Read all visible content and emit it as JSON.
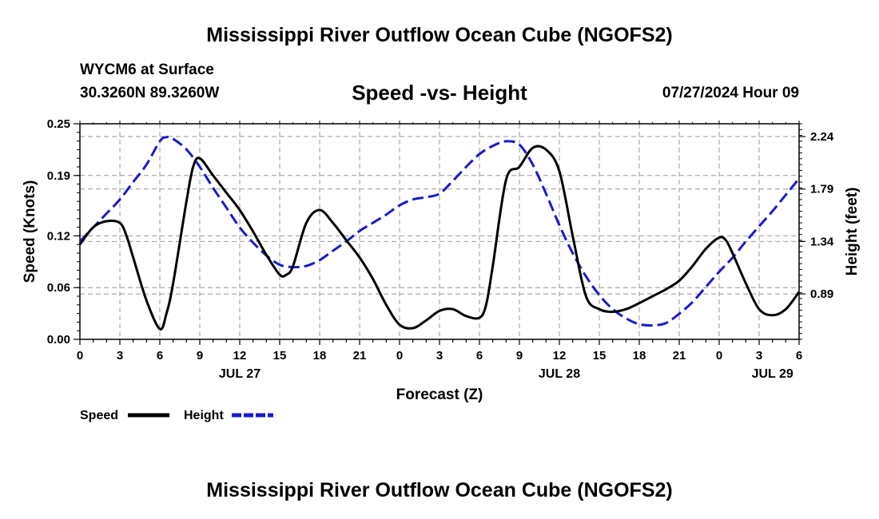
{
  "header": {
    "title": "Mississippi River Outflow Ocean Cube (NGOFS2)",
    "station": "WYCM6 at Surface",
    "coords": "30.3260N  89.3260W",
    "subtitle": "Speed -vs- Height",
    "datetime": "07/27/2024 Hour 09"
  },
  "footer": {
    "title": "Mississippi River Outflow Ocean Cube (NGOFS2)"
  },
  "chart_data": {
    "type": "line",
    "title": "Speed -vs- Height",
    "xlabel": "Forecast (Z)",
    "ylabel": "Speed (Knots)",
    "y2label": "Height (feet)",
    "xlim": [
      0,
      54
    ],
    "ylim": [
      0,
      0.25
    ],
    "y2lim": [
      0.5,
      2.35
    ],
    "x_ticks": [
      0,
      3,
      6,
      9,
      12,
      15,
      18,
      21,
      24,
      27,
      30,
      33,
      36,
      39,
      42,
      45,
      48,
      51,
      54
    ],
    "x_tick_labels": [
      "0",
      "3",
      "6",
      "9",
      "12",
      "15",
      "18",
      "21",
      "0",
      "3",
      "6",
      "9",
      "12",
      "15",
      "18",
      "21",
      "0",
      "3",
      "6"
    ],
    "day_labels": [
      {
        "x": 12,
        "label": "JUL 27"
      },
      {
        "x": 36,
        "label": "JUL 28"
      },
      {
        "x": 52,
        "label": "JUL 29"
      }
    ],
    "y_ticks": [
      0,
      0.06,
      0.12,
      0.19,
      0.25
    ],
    "y_tick_labels": [
      "0.00",
      "0.06",
      "0.12",
      "0.19",
      "0.25"
    ],
    "y2_ticks": [
      0.89,
      1.34,
      1.79,
      2.24
    ],
    "y2_tick_labels": [
      "0.89",
      "1.34",
      "1.79",
      "2.24"
    ],
    "grid": true,
    "series": [
      {
        "name": "Speed",
        "axis": "left",
        "color": "#000000",
        "dash": "solid",
        "x": [
          0,
          1,
          2,
          3,
          3.5,
          4,
          5,
          6,
          6.5,
          7,
          8,
          8.5,
          9,
          10,
          11,
          12,
          13,
          14,
          15,
          15.5,
          16,
          17,
          18,
          19,
          20,
          21,
          22,
          23,
          24,
          25,
          26,
          27,
          28,
          29,
          30,
          30.5,
          31,
          32,
          33,
          34,
          35,
          36,
          37,
          38,
          39,
          40,
          41,
          42,
          43,
          44,
          45,
          46,
          47,
          48,
          48.5,
          49,
          50,
          51,
          52,
          53,
          54
        ],
        "values": [
          0.11,
          0.13,
          0.137,
          0.135,
          0.12,
          0.095,
          0.045,
          0.012,
          0.03,
          0.065,
          0.16,
          0.2,
          0.21,
          0.19,
          0.17,
          0.15,
          0.125,
          0.098,
          0.075,
          0.075,
          0.085,
          0.135,
          0.15,
          0.135,
          0.115,
          0.095,
          0.07,
          0.04,
          0.017,
          0.013,
          0.022,
          0.033,
          0.035,
          0.027,
          0.025,
          0.04,
          0.085,
          0.185,
          0.2,
          0.222,
          0.22,
          0.195,
          0.12,
          0.05,
          0.035,
          0.032,
          0.035,
          0.042,
          0.05,
          0.058,
          0.068,
          0.085,
          0.105,
          0.118,
          0.115,
          0.1,
          0.065,
          0.035,
          0.028,
          0.035,
          0.055
        ]
      },
      {
        "name": "Height",
        "axis": "right",
        "color": "#1a1acc",
        "dash": "dashed",
        "x": [
          0,
          1,
          2,
          3,
          4,
          5,
          6,
          6.5,
          7,
          8,
          9,
          10,
          11,
          12,
          13,
          14,
          15,
          16,
          17,
          18,
          19,
          20,
          21,
          22,
          23,
          24,
          25,
          26,
          27,
          28,
          29,
          30,
          31,
          32,
          33,
          34,
          35,
          36,
          37,
          38,
          39,
          40,
          41,
          42,
          43,
          44,
          45,
          46,
          47,
          48,
          49,
          50,
          51,
          52,
          53,
          54
        ],
        "values": [
          1.34,
          1.46,
          1.58,
          1.7,
          1.85,
          2.0,
          2.2,
          2.235,
          2.22,
          2.13,
          1.98,
          1.8,
          1.63,
          1.46,
          1.33,
          1.22,
          1.14,
          1.12,
          1.13,
          1.18,
          1.26,
          1.34,
          1.43,
          1.5,
          1.57,
          1.65,
          1.7,
          1.72,
          1.75,
          1.86,
          1.98,
          2.09,
          2.16,
          2.2,
          2.17,
          2.0,
          1.75,
          1.48,
          1.24,
          1.04,
          0.88,
          0.76,
          0.68,
          0.63,
          0.62,
          0.64,
          0.72,
          0.82,
          0.95,
          1.08,
          1.2,
          1.34,
          1.47,
          1.6,
          1.74,
          1.88
        ]
      }
    ]
  }
}
